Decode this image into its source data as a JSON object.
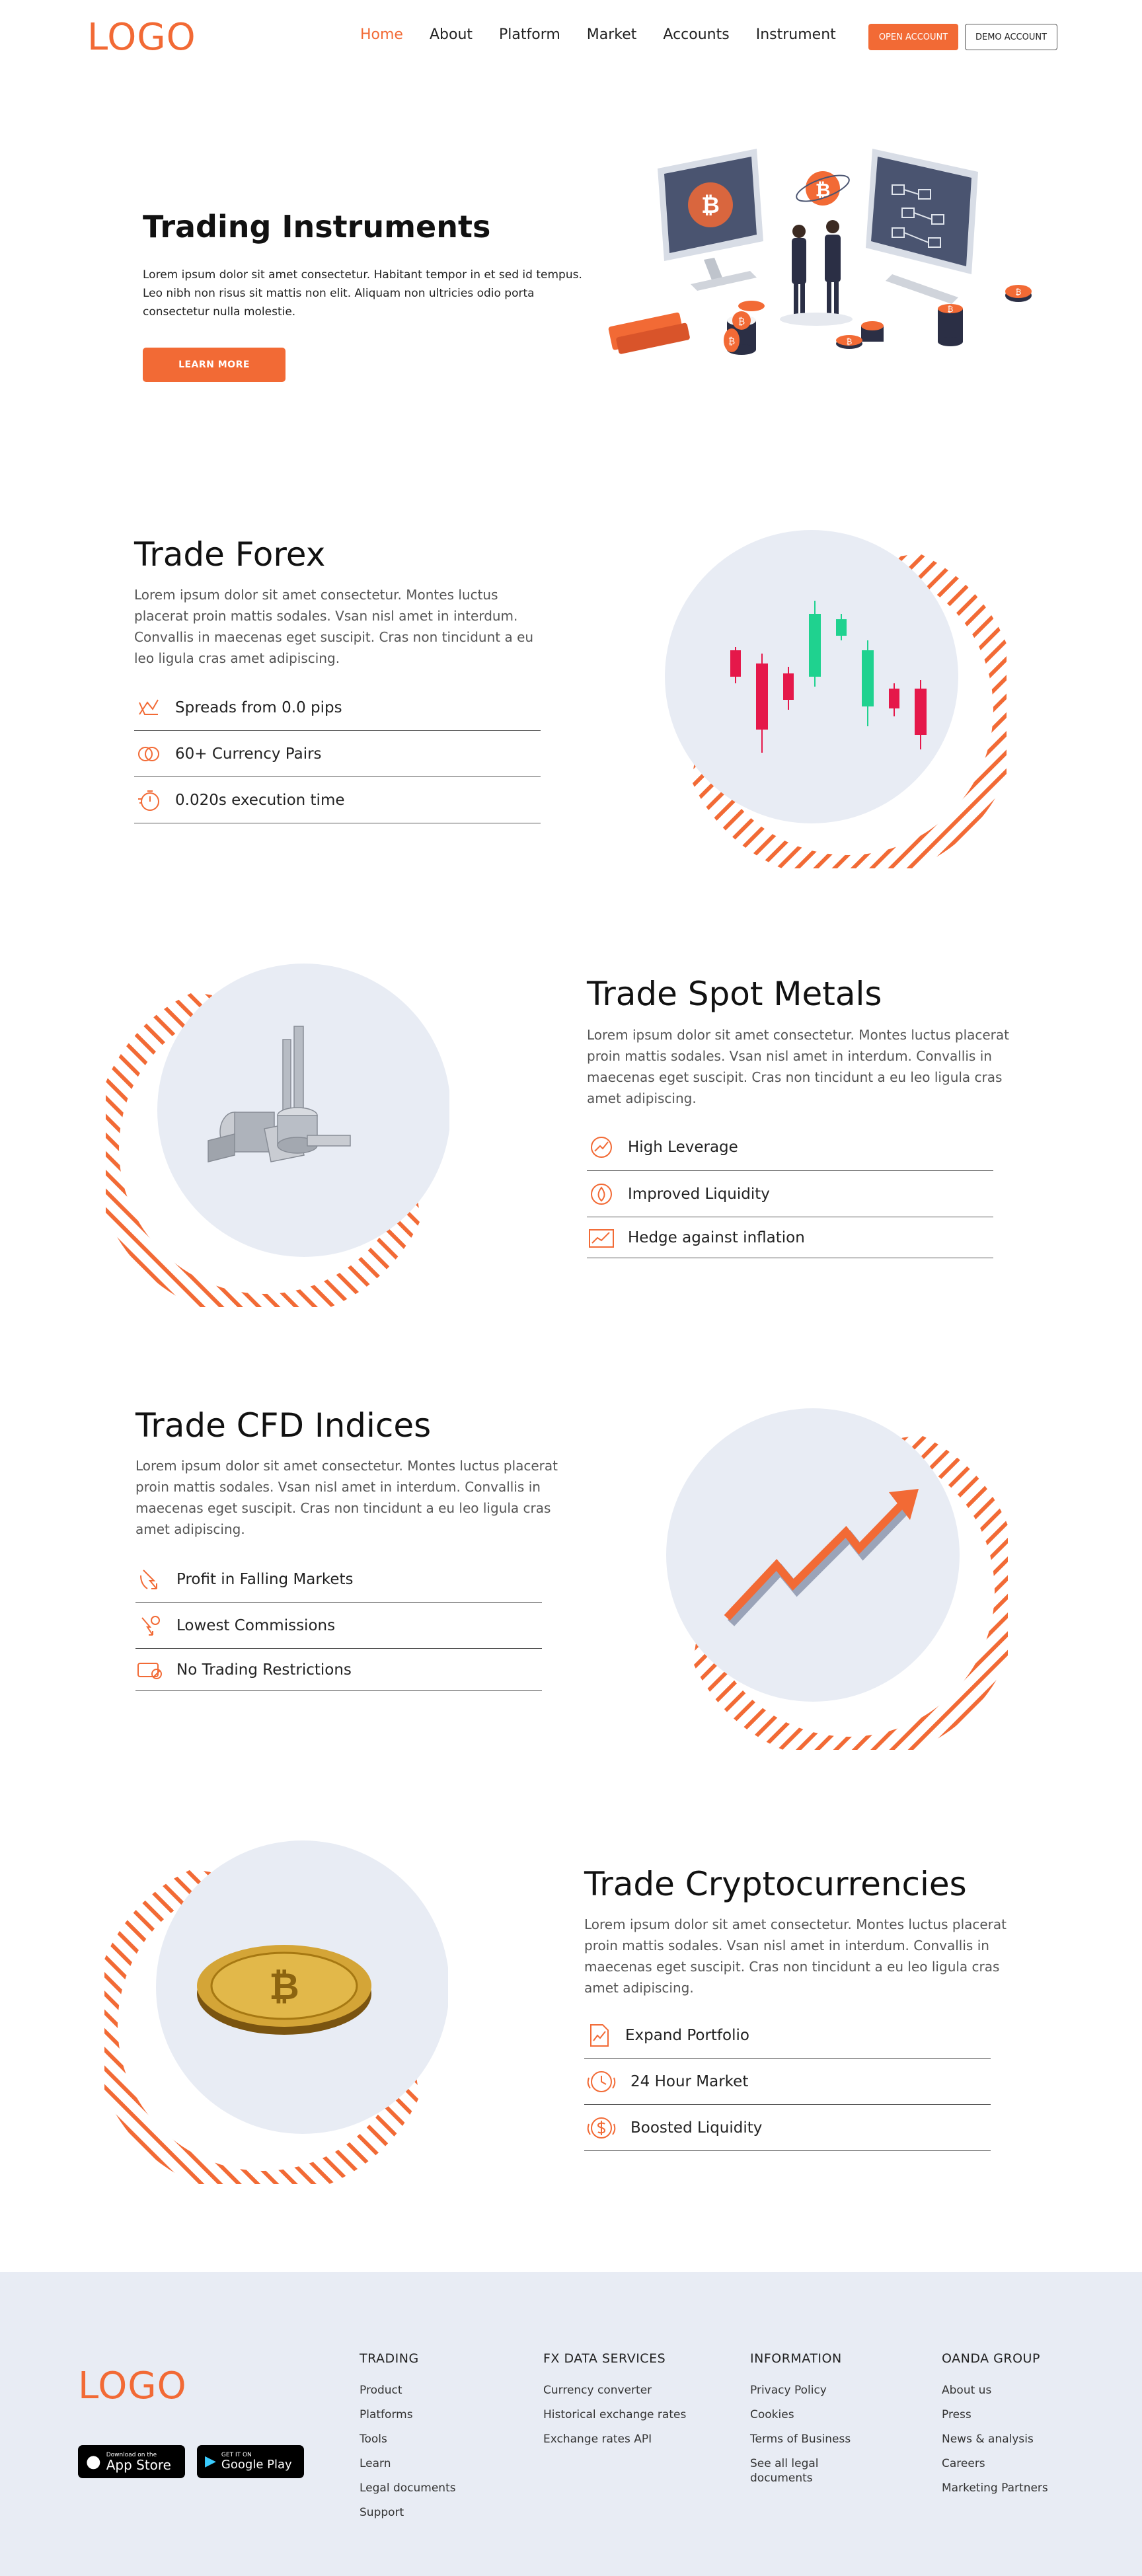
{
  "nav": {
    "logo": "LOGO",
    "items": [
      "Home",
      "About",
      "Platform",
      "Market",
      "Accounts",
      "Instrument"
    ],
    "open_account": "OPEN ACCOUNT",
    "demo_account": "DEMO ACCOUNT"
  },
  "hero": {
    "title": "Trading Instruments",
    "text": "Lorem ipsum dolor sit amet consectetur. Habitant tempor in et sed id tempus. Leo nibh non risus sit mattis non elit. Aliquam non ultricies odio porta consectetur nulla molestie.",
    "button": "LEARN MORE"
  },
  "sections": [
    {
      "title": "Trade Forex",
      "text": "Lorem ipsum dolor sit amet consectetur. Montes luctus placerat proin mattis sodales. Vsan nisl amet in interdum. Convallis in maecenas eget suscipit. Cras non tincidunt a eu leo ligula cras amet adipiscing.",
      "features": [
        "Spreads from 0.0 pips",
        "60+ Currency Pairs",
        "0.020s execution time"
      ]
    },
    {
      "title": "Trade Spot Metals",
      "text": "Lorem ipsum dolor sit amet consectetur. Montes luctus placerat proin mattis sodales. Vsan nisl amet in interdum. Convallis in maecenas eget suscipit. Cras non tincidunt a eu leo ligula cras amet adipiscing.",
      "features": [
        "High Leverage",
        "Improved Liquidity",
        "Hedge against inflation"
      ]
    },
    {
      "title": "Trade CFD Indices",
      "text": "Lorem ipsum dolor sit amet consectetur. Montes luctus placerat proin mattis sodales. Vsan nisl amet in interdum. Convallis in maecenas eget suscipit. Cras non tincidunt a eu leo ligula cras amet adipiscing.",
      "features": [
        "Profit in Falling Markets",
        "Lowest Commissions",
        "No Trading Restrictions"
      ]
    },
    {
      "title": "Trade Cryptocurrencies",
      "text": "Lorem ipsum dolor sit amet consectetur. Montes luctus placerat proin mattis sodales. Vsan nisl amet in interdum. Convallis in maecenas eget suscipit. Cras non tincidunt a eu leo ligula cras amet adipiscing.",
      "features": [
        "Expand Portfolio",
        "24 Hour Market",
        "Boosted Liquidity"
      ]
    }
  ],
  "footer": {
    "logo": "LOGO",
    "app_store": {
      "small": "Download on the",
      "big": "App Store"
    },
    "google_play": {
      "small": "GET IT ON",
      "big": "Google Play"
    },
    "columns": [
      {
        "title": "TRADING",
        "links": [
          "Product",
          "Platforms",
          "Tools",
          "Learn",
          "Legal documents",
          "Support"
        ]
      },
      {
        "title": "FX DATA SERVICES",
        "links": [
          "Currency converter",
          "Historical exchange rates",
          "Exchange rates API"
        ]
      },
      {
        "title": "INFORMATION",
        "links": [
          "Privacy Policy",
          "Cookies",
          "Terms of Business",
          "See all legal documents"
        ]
      },
      {
        "title": "OANDA GROUP",
        "links": [
          "About us",
          "Press",
          "News & analysis",
          "Careers",
          "Marketing Partners"
        ]
      }
    ]
  },
  "colors": {
    "accent": "#f26a35",
    "circle": "#e8ecf4",
    "footer_bg": "#e8ecf4",
    "candle_up": "#1fd28f",
    "candle_down": "#e5184a"
  }
}
